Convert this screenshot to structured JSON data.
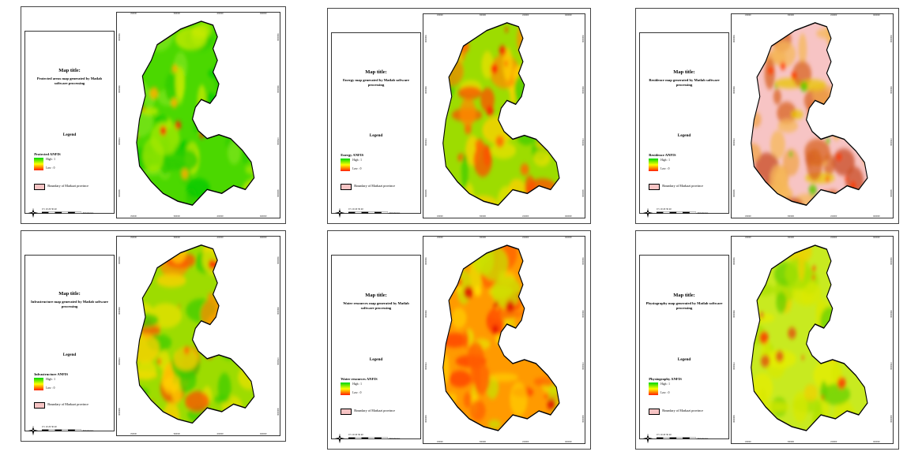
{
  "panels": [
    {
      "map_title_heading": "Map title:",
      "map_title_text": "Protected areas map generated by Matlab software processing",
      "legend_heading": "Legend",
      "anfis_label": "Protected ANFIS",
      "high_label": "High : 1",
      "low_label": "Low : 0",
      "boundary_label": "Boundary of Markazi province",
      "scale_label": "0 5 10 20 30 40",
      "scale_unit": "Kilometers",
      "color_scheme": "green"
    },
    {
      "map_title_heading": "Map title:",
      "map_title_text": "Energy map generated by Matlab software processing",
      "legend_heading": "Legend",
      "anfis_label": "Energy ANFIS",
      "high_label": "High : 1",
      "low_label": "Low : 0",
      "boundary_label": "Boundary of Markazi province",
      "scale_label": "0 5 10 20 30 40",
      "scale_unit": "Kilometers",
      "color_scheme": "mixed"
    },
    {
      "map_title_heading": "Map title:",
      "map_title_text": "Residence map generated by Matlab software processing",
      "legend_heading": "Legend",
      "anfis_label": "Residence ANFIS",
      "high_label": "High : 1",
      "low_label": "Low : 0",
      "boundary_label": "Boundary of Markazi province",
      "scale_label": "0 5 10 20 30 40",
      "scale_unit": "Kilometers",
      "color_scheme": "pink"
    },
    {
      "map_title_heading": "Map title:",
      "map_title_text": "Infrastructure map generated by Matlab software processing",
      "legend_heading": "Legend",
      "anfis_label": "Infrastructure ANFIS",
      "high_label": "High : 1",
      "low_label": "Low : 0",
      "boundary_label": "Boundary of Markazi province",
      "scale_label": "0 5 10 20 30 40",
      "scale_unit": "Kilometers",
      "color_scheme": "mixed"
    },
    {
      "map_title_heading": "Map title:",
      "map_title_text": "Water resources map generated by Matlab software processing",
      "legend_heading": "Legend",
      "anfis_label": "Water resources ANFIS",
      "high_label": "High : 1",
      "low_label": "Low : 0",
      "boundary_label": "Boundary of Markazi province",
      "scale_label": "0 5 10 20 30 40",
      "scale_unit": "Kilometers",
      "color_scheme": "orange"
    },
    {
      "map_title_heading": "Map title:",
      "map_title_text": "Physiography map generated by Matlab software processing",
      "legend_heading": "Legend",
      "anfis_label": "Physiography ANFIS",
      "high_label": "High : 1",
      "low_label": "Low : 0",
      "boundary_label": "Boundary of Markazi province",
      "scale_label": "0 5 10 20 30 40",
      "scale_unit": "Kilometers",
      "color_scheme": "yellowgreen"
    }
  ],
  "grid_ticks_x": [
    "150000",
    "300000",
    "450000",
    "600000"
  ],
  "grid_ticks_y": [
    "3900000",
    "3800000",
    "3700000",
    "3600000"
  ],
  "colors": {
    "high": "#00d800",
    "mid": "#ffff00",
    "low": "#ff1d00",
    "boundary_fill": "#f7c4c4",
    "outline": "#000000"
  }
}
